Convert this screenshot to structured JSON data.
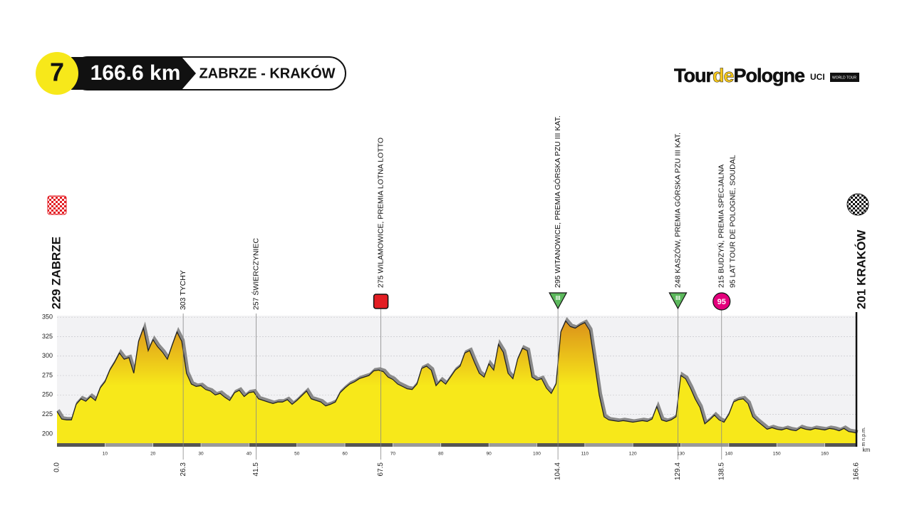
{
  "chart_data": {
    "type": "area",
    "stage": "7",
    "distance": "166.6 km",
    "route": "ZABRZE - KRAKÓW",
    "logo": {
      "parts": [
        "Tour",
        "de",
        "Pologne"
      ],
      "uci": "UCI",
      "tour": "WORLD TOUR"
    },
    "x": [
      0,
      1,
      2,
      3,
      4,
      5,
      6,
      7,
      8,
      9,
      10,
      11,
      12,
      13,
      14,
      15,
      16,
      17,
      18,
      19,
      20,
      21,
      22,
      23,
      24,
      25,
      26,
      27,
      28,
      29,
      30,
      31,
      32,
      33,
      34,
      35,
      36,
      37,
      38,
      39,
      40,
      41,
      42,
      43,
      44,
      45,
      46,
      47,
      48,
      49,
      50,
      51,
      52,
      53,
      54,
      55,
      56,
      57,
      58,
      59,
      60,
      61,
      62,
      63,
      64,
      65,
      66,
      67,
      68,
      69,
      70,
      71,
      72,
      73,
      74,
      75,
      76,
      77,
      78,
      79,
      80,
      81,
      82,
      83,
      84,
      85,
      86,
      87,
      88,
      89,
      90,
      91,
      92,
      93,
      94,
      95,
      96,
      97,
      98,
      99,
      100,
      101,
      102,
      103,
      104,
      105,
      106,
      107,
      108,
      109,
      110,
      111,
      112,
      113,
      114,
      115,
      116,
      117,
      118,
      119,
      120,
      121,
      122,
      123,
      124,
      125,
      126,
      127,
      128,
      129,
      130,
      131,
      132,
      133,
      134,
      135,
      136,
      137,
      138,
      139,
      140,
      141,
      142,
      143,
      144,
      145,
      146,
      147,
      148,
      149,
      150,
      151,
      152,
      153,
      154,
      155,
      156,
      157,
      158,
      159,
      160,
      161,
      162,
      163,
      164,
      165,
      166,
      166.6
    ],
    "values": [
      229,
      219,
      218,
      218,
      238,
      245,
      242,
      248,
      243,
      259,
      267,
      282,
      292,
      304,
      296,
      298,
      278,
      319,
      336,
      307,
      321,
      312,
      305,
      296,
      314,
      331,
      319,
      278,
      264,
      261,
      262,
      257,
      255,
      250,
      252,
      247,
      243,
      253,
      256,
      248,
      253,
      254,
      245,
      243,
      241,
      239,
      241,
      241,
      244,
      238,
      243,
      249,
      255,
      245,
      243,
      241,
      236,
      238,
      241,
      253,
      259,
      264,
      267,
      271,
      273,
      275,
      281,
      282,
      280,
      273,
      270,
      264,
      261,
      258,
      257,
      264,
      284,
      287,
      282,
      262,
      269,
      264,
      273,
      282,
      287,
      304,
      307,
      292,
      278,
      273,
      290,
      282,
      315,
      305,
      278,
      271,
      296,
      310,
      307,
      273,
      269,
      271,
      259,
      252,
      264,
      331,
      345,
      338,
      336,
      340,
      343,
      333,
      292,
      250,
      222,
      218,
      217,
      216,
      217,
      216,
      215,
      216,
      217,
      216,
      219,
      235,
      218,
      216,
      218,
      222,
      275,
      271,
      259,
      245,
      234,
      213,
      218,
      224,
      218,
      215,
      225,
      241,
      244,
      245,
      239,
      222,
      216,
      211,
      206,
      208,
      206,
      205,
      207,
      205,
      204,
      208,
      206,
      205,
      207,
      206,
      205,
      207,
      206,
      204,
      207,
      203,
      202,
      201
    ],
    "color": "#f7e81a",
    "peak_color": "#d98b1a",
    "xlim": [
      0,
      166.6
    ],
    "ylim": [
      188,
      352
    ],
    "yticks": [
      200,
      225,
      250,
      275,
      300,
      325,
      350
    ],
    "xticks": [
      10,
      20,
      30,
      40,
      50,
      60,
      70,
      80,
      90,
      100,
      110,
      120,
      130,
      140,
      150,
      160
    ],
    "grid": true,
    "y_label": "m n.p.m.",
    "x_label": "km",
    "milestones": [
      {
        "km": {
          "value": 0,
          "label": "0.0"
        },
        "lines": [
          "229 ZABRZE"
        ]
      },
      {
        "km": 26.3,
        "lines": [
          "303 TYCHY"
        ]
      },
      {
        "km": 41.5,
        "lines": [
          "257 ŚWIERCZYNIEC"
        ]
      },
      {
        "km": 67.5,
        "lines": [
          "275 WILAMOWICE, PREMIA LOTNA LOTTO"
        ],
        "badge": {
          "shape": "square",
          "color": "#e31e24"
        }
      },
      {
        "km": 104.4,
        "lines": [
          "295 WITANOWICE, PREMIA GÓRSKA PZU III KAT."
        ],
        "badge": {
          "shape": "triangle",
          "color": "#5cb85c",
          "text": "III"
        }
      },
      {
        "km": 129.4,
        "lines": [
          "248 KASZÓW, PREMIA GÓRSKA PZU III KAT."
        ],
        "badge": {
          "shape": "triangle",
          "color": "#5cb85c",
          "text": "III"
        }
      },
      {
        "km": 138.5,
        "lines": [
          "215 BUDZYŃ, PREMIA SPECJALNA",
          "95 LAT TOUR DE POLOGNE, SOUDAL"
        ],
        "badge": {
          "shape": "circle",
          "color": "#e4007c",
          "text": "95"
        }
      },
      {
        "km": 166.6,
        "lines": [
          "201 KRAKÓW"
        ]
      }
    ]
  }
}
